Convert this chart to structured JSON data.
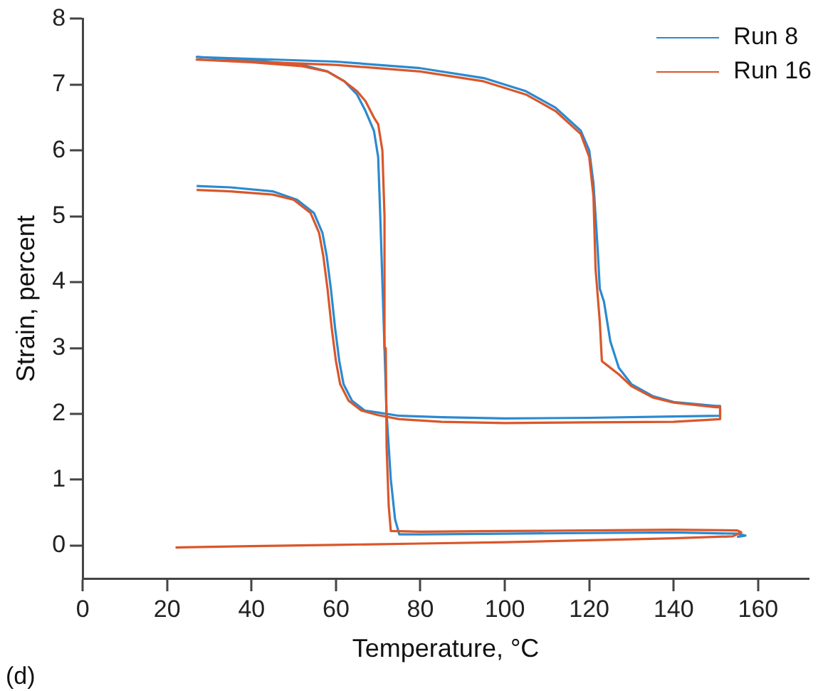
{
  "chart_data": {
    "type": "line",
    "xlabel": "Temperature, °C",
    "ylabel": "Strain, percent",
    "annotations": [
      "(d)"
    ],
    "xlim": [
      0,
      172
    ],
    "xticks": [
      0,
      20,
      40,
      60,
      80,
      100,
      120,
      140,
      160
    ],
    "ylim": [
      -0.5,
      8
    ],
    "yticks": [
      0,
      1,
      2,
      3,
      4,
      5,
      6,
      7,
      8
    ],
    "legend": "top right",
    "series": [
      {
        "name": "Run 8",
        "color": "#2b8ad0",
        "x": [
          155,
          157,
          155,
          140,
          120,
          100,
          80,
          75,
          74,
          73,
          72,
          71.5,
          71,
          70.5,
          70,
          69,
          67,
          65,
          62,
          58,
          52,
          40,
          27,
          60,
          80,
          95,
          105,
          112,
          118,
          120,
          121,
          122,
          122.5,
          123.5,
          125,
          127,
          130,
          135,
          140,
          150,
          151,
          151,
          140,
          120,
          100,
          85,
          75,
          70,
          66.8,
          63.8,
          61.8,
          60.8,
          59.8,
          58.8,
          57.8,
          56.8,
          54.8,
          50.8,
          45,
          35,
          27
        ],
        "values": [
          0.13,
          0.15,
          0.18,
          0.2,
          0.19,
          0.18,
          0.17,
          0.17,
          0.4,
          1.0,
          2.0,
          3,
          4,
          5,
          5.9,
          6.3,
          6.6,
          6.85,
          7.05,
          7.2,
          7.3,
          7.37,
          7.42,
          7.35,
          7.25,
          7.1,
          6.9,
          6.65,
          6.3,
          6.0,
          5.5,
          4.5,
          3.9,
          3.7,
          3.1,
          2.7,
          2.45,
          2.27,
          2.18,
          2.12,
          2.12,
          1.97,
          1.96,
          1.94,
          1.93,
          1.95,
          1.97,
          2.02,
          2.05,
          2.2,
          2.45,
          2.8,
          3.3,
          3.9,
          4.4,
          4.75,
          5.05,
          5.25,
          5.38,
          5.44,
          5.46
        ]
      },
      {
        "name": "Run 16",
        "color": "#d9572b",
        "x": [
          22,
          40,
          60,
          80,
          100,
          120,
          140,
          154,
          156,
          155,
          140,
          120,
          100,
          80,
          73,
          72.5,
          72,
          71.8,
          71.5,
          71,
          70,
          69,
          67,
          65,
          62,
          58,
          52,
          40,
          27,
          60,
          80,
          95,
          105,
          112,
          118,
          120,
          121,
          121.5,
          122.5,
          123,
          124,
          127,
          130,
          135,
          140,
          150,
          151,
          151,
          140,
          120,
          100,
          85,
          75,
          70,
          66,
          63,
          61,
          60,
          59,
          58,
          57,
          56,
          54,
          50,
          45,
          35,
          27
        ],
        "values": [
          -0.03,
          -0.01,
          0.01,
          0.03,
          0.05,
          0.08,
          0.11,
          0.14,
          0.2,
          0.23,
          0.24,
          0.23,
          0.22,
          0.21,
          0.22,
          0.6,
          1.5,
          3,
          5,
          6,
          6.4,
          6.5,
          6.75,
          6.9,
          7.05,
          7.2,
          7.28,
          7.34,
          7.38,
          7.3,
          7.2,
          7.05,
          6.85,
          6.6,
          6.25,
          5.9,
          5.3,
          4.2,
          3.4,
          2.8,
          2.75,
          2.6,
          2.42,
          2.25,
          2.17,
          2.1,
          2.1,
          1.92,
          1.88,
          1.87,
          1.86,
          1.88,
          1.92,
          1.98,
          2.05,
          2.2,
          2.45,
          2.8,
          3.3,
          3.9,
          4.4,
          4.75,
          5.05,
          5.25,
          5.33,
          5.38,
          5.4
        ]
      }
    ]
  }
}
